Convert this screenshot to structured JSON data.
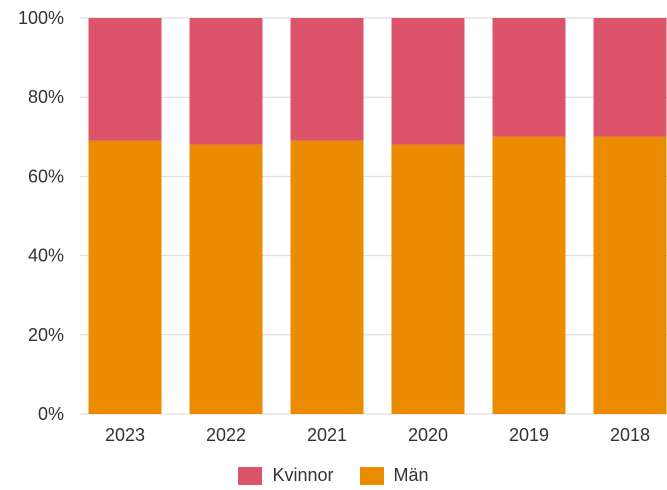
{
  "chart_data": {
    "type": "bar",
    "stacked": true,
    "categories": [
      "2023",
      "2022",
      "2021",
      "2020",
      "2019",
      "2018"
    ],
    "series": [
      {
        "name": "Män",
        "color": "#EA8B00",
        "values": [
          69,
          68,
          69,
          68,
          70,
          70
        ]
      },
      {
        "name": "Kvinnor",
        "color": "#DC546A",
        "values": [
          31,
          32,
          31,
          32,
          30,
          30
        ]
      }
    ],
    "ylim": [
      0,
      100
    ],
    "y_ticks": [
      "0%",
      "20%",
      "40%",
      "60%",
      "80%",
      "100%"
    ],
    "grid": true,
    "legend_position": "bottom"
  },
  "legend": [
    {
      "name": "Kvinnor",
      "color": "#DC546A"
    },
    {
      "name": "Män",
      "color": "#EA8B00"
    }
  ]
}
